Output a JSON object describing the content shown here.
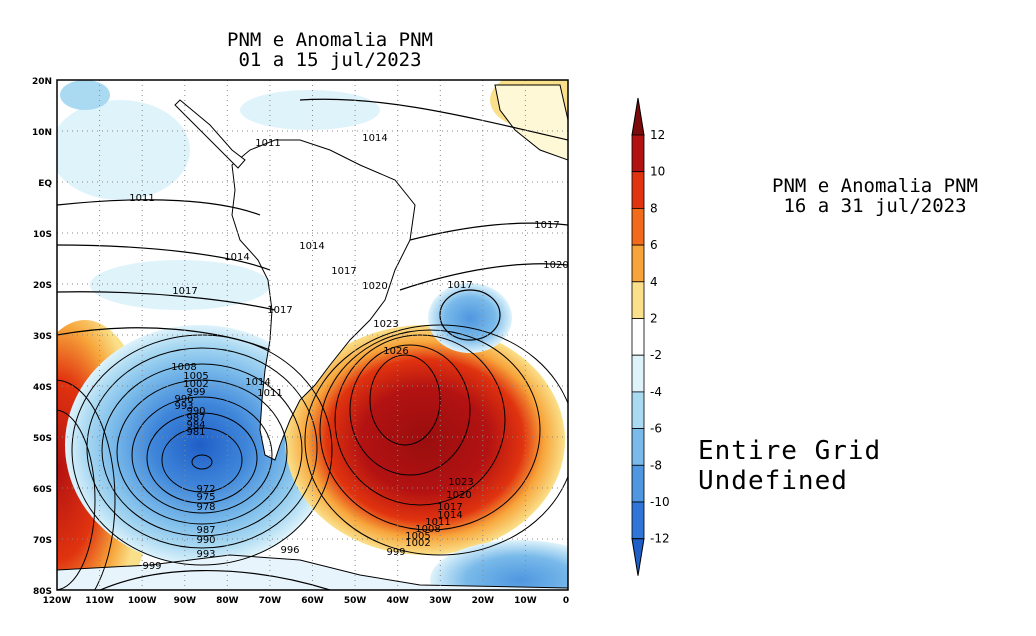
{
  "left_panel": {
    "title_line1": "PNM e Anomalia PNM",
    "title_line2": "01 a 15 jul/2023",
    "lat_labels": [
      "20N",
      "10N",
      "EQ",
      "10S",
      "20S",
      "30S",
      "40S",
      "50S",
      "60S",
      "70S",
      "80S"
    ],
    "lon_labels": [
      "120W",
      "110W",
      "100W",
      "90W",
      "80W",
      "70W",
      "60W",
      "50W",
      "40W",
      "30W",
      "20W",
      "10W",
      "0"
    ],
    "isobar_labels": [
      "1014",
      "1011",
      "1011",
      "1017",
      "1014",
      "1014",
      "1017",
      "1020",
      "1017",
      "1020",
      "1017",
      "1017",
      "1023",
      "1026",
      "1008",
      "1005",
      "1002",
      "999",
      "996",
      "993",
      "990",
      "987",
      "984",
      "981",
      "1014",
      "1011",
      "972",
      "975",
      "978",
      "1023",
      "1020",
      "1017",
      "1014",
      "1011",
      "1008",
      "1005",
      "1002",
      "999",
      "987",
      "990",
      "993",
      "996",
      "999"
    ]
  },
  "right_panel": {
    "title_line1": "PNM e Anomalia PNM",
    "title_line2": "16 a 31 jul/2023",
    "message": "Entire Grid Undefined"
  },
  "colorbar": {
    "labels": [
      "12",
      "10",
      "8",
      "6",
      "4",
      "2",
      "-2",
      "-4",
      "-6",
      "-8",
      "-10",
      "-12"
    ],
    "colors": [
      "#7d0a0a",
      "#b31212",
      "#e0330f",
      "#f26a1b",
      "#f7a53b",
      "#fae08a",
      "#ffffff",
      "#dff3fb",
      "#aad9f2",
      "#79baea",
      "#4f97e0",
      "#2f76d8",
      "#1f5fc8"
    ]
  }
}
